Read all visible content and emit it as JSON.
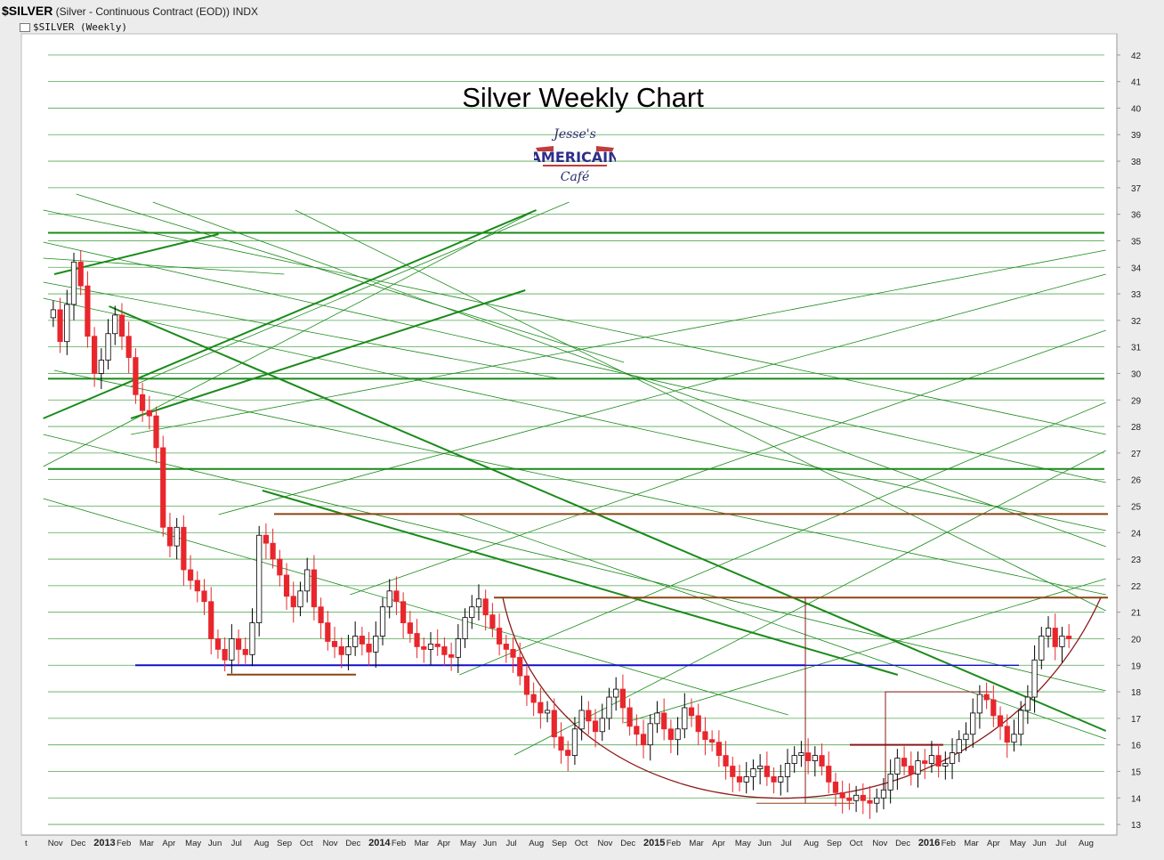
{
  "header": {
    "symbol": "$SILVER",
    "description": "(Silver - Continuous Contract (EOD))",
    "exchange": "INDX",
    "overlay_label": "$SILVER (Weekly)"
  },
  "logo": {
    "line1": "Jesse's",
    "line2": "AMERICAIN",
    "line3": "Café"
  },
  "colors": {
    "background": "#ffffff",
    "frame": "#ececec",
    "up_candle": "#ffffff",
    "down_candle": "#e8262c",
    "trend_green": "#1a8a1a",
    "support_blue": "#1010c8",
    "resistance_brown": "#8b4513",
    "cup_maroon": "#8b1a1a"
  },
  "chart_data": {
    "type": "candlestick",
    "title": "Silver Weekly Chart",
    "ylim": [
      12.6,
      42.8
    ],
    "y_ticks": [
      13,
      14,
      15,
      16,
      17,
      18,
      19,
      20,
      21,
      22,
      23,
      24,
      25,
      26,
      27,
      28,
      29,
      30,
      31,
      32,
      33,
      34,
      35,
      36,
      37,
      38,
      39,
      40,
      41,
      42
    ],
    "x_labels": [
      "t",
      "Nov",
      "Dec",
      "2013",
      "Feb",
      "Mar",
      "Apr",
      "May",
      "Jun",
      "Jul",
      "Aug",
      "Sep",
      "Oct",
      "Nov",
      "Dec",
      "2014",
      "Feb",
      "Mar",
      "Apr",
      "May",
      "Jun",
      "Jul",
      "Aug",
      "Sep",
      "Oct",
      "Nov",
      "Dec",
      "2015",
      "Feb",
      "Mar",
      "Apr",
      "May",
      "Jun",
      "Jul",
      "Aug",
      "Sep",
      "Oct",
      "Nov",
      "Dec",
      "2016",
      "Feb",
      "Mar",
      "Apr",
      "May",
      "Jun",
      "Jul",
      "Aug"
    ],
    "bold_x_labels": [
      "2013",
      "2014",
      "2015",
      "2016"
    ],
    "closes": [
      32.4,
      31.2,
      32.6,
      34.2,
      33.3,
      31.4,
      30.0,
      30.5,
      31.5,
      32.2,
      31.4,
      30.6,
      29.2,
      28.6,
      28.4,
      27.2,
      24.2,
      23.5,
      24.2,
      22.6,
      22.2,
      21.8,
      21.4,
      20.0,
      19.6,
      19.2,
      20.0,
      19.6,
      19.4,
      20.6,
      23.9,
      23.6,
      23.0,
      22.4,
      21.6,
      21.2,
      21.8,
      22.6,
      21.2,
      20.6,
      19.9,
      19.7,
      19.4,
      19.7,
      20.1,
      19.8,
      19.5,
      20.1,
      21.2,
      21.8,
      21.4,
      20.6,
      20.2,
      19.7,
      19.6,
      19.8,
      19.7,
      19.4,
      19.3,
      20.0,
      20.8,
      21.2,
      21.5,
      20.9,
      20.4,
      19.8,
      19.6,
      19.3,
      18.6,
      17.9,
      17.6,
      17.2,
      17.3,
      16.3,
      15.8,
      15.6,
      16.6,
      17.3,
      16.9,
      16.5,
      17.0,
      17.8,
      18.1,
      17.4,
      16.7,
      16.4,
      16.0,
      16.8,
      17.2,
      16.6,
      16.2,
      16.6,
      17.4,
      17.1,
      16.5,
      16.2,
      16.1,
      15.6,
      15.2,
      14.8,
      14.6,
      14.8,
      15.1,
      15.2,
      14.8,
      14.6,
      14.8,
      15.3,
      15.6,
      15.7,
      15.4,
      15.6,
      15.2,
      14.6,
      14.2,
      14.0,
      13.9,
      14.1,
      13.9,
      13.8,
      14.0,
      14.3,
      14.9,
      15.5,
      15.2,
      14.9,
      15.4,
      15.3,
      15.6,
      15.2,
      15.3,
      15.7,
      16.2,
      16.4,
      17.2,
      17.9,
      17.7,
      17.1,
      16.7,
      16.1,
      16.4,
      17.3,
      17.8,
      19.2,
      20.1,
      20.4,
      19.7,
      20.1,
      20.0
    ],
    "annotations": {
      "support": 19.0,
      "resistance_2013": 24.7,
      "resistance_2014": 21.55,
      "cup_low": 13.15,
      "handle_box": [
        18.0,
        14.0
      ],
      "base_line_2013": 18.65
    }
  }
}
